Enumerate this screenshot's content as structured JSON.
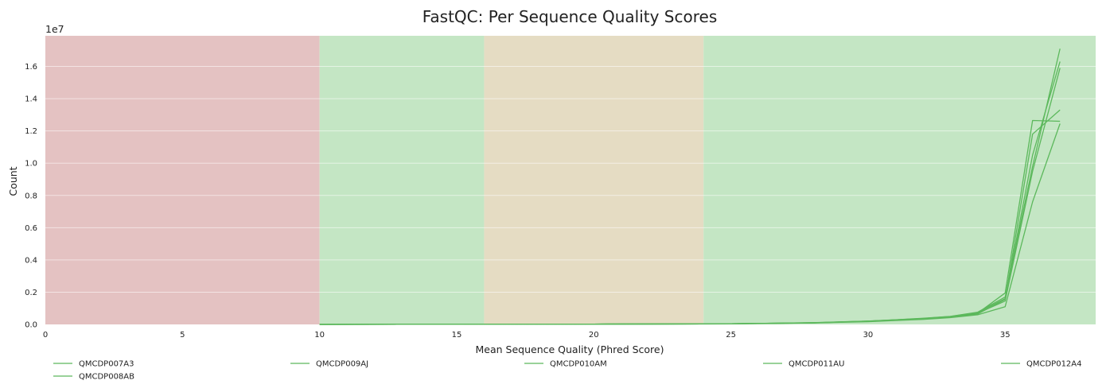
{
  "chart_data": {
    "type": "line",
    "title": "FastQC: Per Sequence Quality Scores",
    "xlabel": "Mean Sequence Quality (Phred Score)",
    "ylabel": "Count",
    "y_exponent_label": "1e7",
    "xlim": [
      0,
      38.3
    ],
    "ylim": [
      0,
      17900000
    ],
    "x_ticks": [
      0,
      5,
      10,
      15,
      20,
      25,
      30,
      35
    ],
    "y_ticks": [
      0.0,
      0.2,
      0.4,
      0.6,
      0.8,
      1.0,
      1.2,
      1.4,
      1.6
    ],
    "y_tick_scale": 10000000,
    "grid": "horizontal",
    "legend_placement": "bottom",
    "zones": [
      {
        "from": 0,
        "to": 10,
        "color": "#e4c2c2"
      },
      {
        "from": 10,
        "to": 16,
        "color": "#c4e6c4"
      },
      {
        "from": 16,
        "to": 24,
        "color": "#e5dcc3"
      },
      {
        "from": 24,
        "to": 38.3,
        "color": "#c4e6c4"
      }
    ],
    "series_color": "#5cb85c",
    "x": [
      10,
      15,
      20,
      24,
      25,
      26,
      27,
      28,
      29,
      30,
      31,
      32,
      33,
      34,
      35,
      36,
      37
    ],
    "series": [
      {
        "name": "QMCDP007A3",
        "values": [
          0,
          10000,
          20000,
          35000,
          45000,
          60000,
          80000,
          100000,
          150000,
          200000,
          280000,
          360000,
          480000,
          700000,
          1950000,
          12650000,
          12600000
        ]
      },
      {
        "name": "QMCDP008AB",
        "values": [
          0,
          10000,
          20000,
          30000,
          40000,
          55000,
          75000,
          95000,
          140000,
          190000,
          260000,
          340000,
          450000,
          650000,
          1550000,
          11800000,
          13300000
        ]
      },
      {
        "name": "QMCDP009AJ",
        "values": [
          0,
          10000,
          20000,
          35000,
          45000,
          60000,
          85000,
          110000,
          160000,
          210000,
          290000,
          380000,
          500000,
          760000,
          1700000,
          9800000,
          17100000
        ]
      },
      {
        "name": "QMCDP010AM",
        "values": [
          0,
          8000,
          15000,
          25000,
          35000,
          50000,
          70000,
          90000,
          130000,
          170000,
          240000,
          310000,
          420000,
          600000,
          1100000,
          7600000,
          12450000
        ]
      },
      {
        "name": "QMCDP011AU",
        "values": [
          0,
          10000,
          20000,
          35000,
          45000,
          62000,
          85000,
          105000,
          155000,
          205000,
          285000,
          370000,
          490000,
          730000,
          1600000,
          10500000,
          16300000
        ]
      },
      {
        "name": "QMCDP012A4",
        "values": [
          0,
          10000,
          20000,
          33000,
          43000,
          58000,
          80000,
          100000,
          148000,
          198000,
          275000,
          360000,
          475000,
          700000,
          1450000,
          9500000,
          15900000
        ]
      }
    ]
  }
}
